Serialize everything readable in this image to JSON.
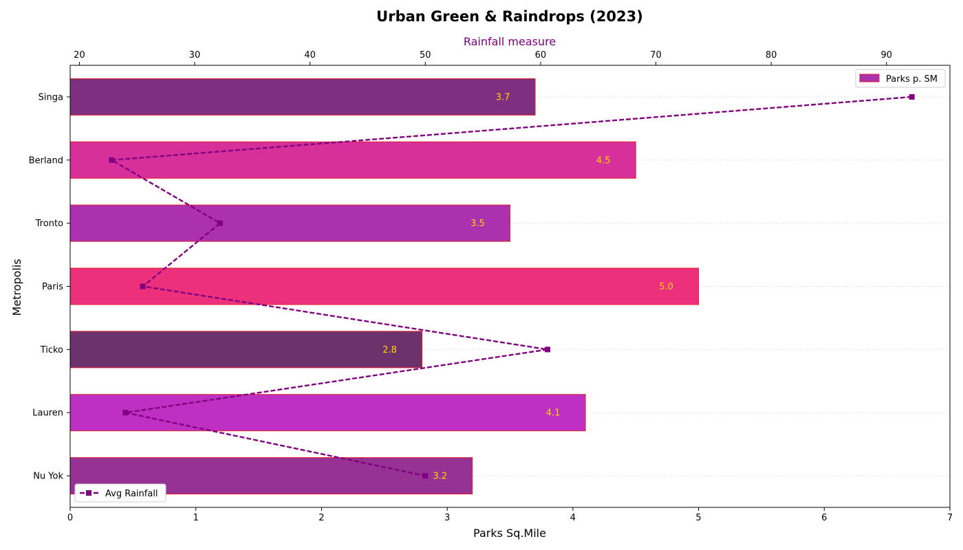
{
  "chart_data": {
    "type": "bar",
    "title": "Urban Green & Raindrops (2023)",
    "categories": [
      "Singa",
      "Berland",
      "Tronto",
      "Paris",
      "Ticko",
      "Lauren",
      "Nu Yok"
    ],
    "xlabel": "Parks Sq.Mile",
    "ylabel": "Metropolis",
    "xlim": [
      0,
      7
    ],
    "x_ticks": [
      0,
      1,
      2,
      3,
      4,
      5,
      6,
      7
    ],
    "series": [
      {
        "name": "Parks p. SM",
        "type": "bar",
        "orientation": "horizontal",
        "values": [
          3.7,
          4.5,
          3.5,
          5.0,
          2.8,
          4.1,
          3.2
        ],
        "colors": [
          "#7f2f80",
          "#d8309a",
          "#ab31ae",
          "#ec307c",
          "#6c326c",
          "#bd30c2",
          "#963294"
        ],
        "edge_color": "#e0202c"
      },
      {
        "name": "Avg Rainfall",
        "type": "line",
        "axis": "top",
        "values": [
          92.2,
          22.8,
          32.2,
          25.5,
          60.6,
          24.0,
          50.0
        ],
        "color": "#800080",
        "line_style": "dashed",
        "marker": "square"
      }
    ],
    "top_axis": {
      "label": "Rainfall measure",
      "label_color": "#800080",
      "lim": [
        19.2,
        95.5
      ],
      "ticks": [
        20,
        30,
        40,
        50,
        60,
        70,
        80,
        90
      ]
    },
    "data_labels": [
      "3.7",
      "4.5",
      "3.5",
      "5.0",
      "2.8",
      "4.1",
      "3.2"
    ],
    "data_label_color": "#ffd700",
    "grid": "horizontal-dotted",
    "legends": [
      {
        "label": "Parks p. SM",
        "placement": "top-right"
      },
      {
        "label": "Avg Rainfall",
        "placement": "bottom-left"
      }
    ]
  }
}
